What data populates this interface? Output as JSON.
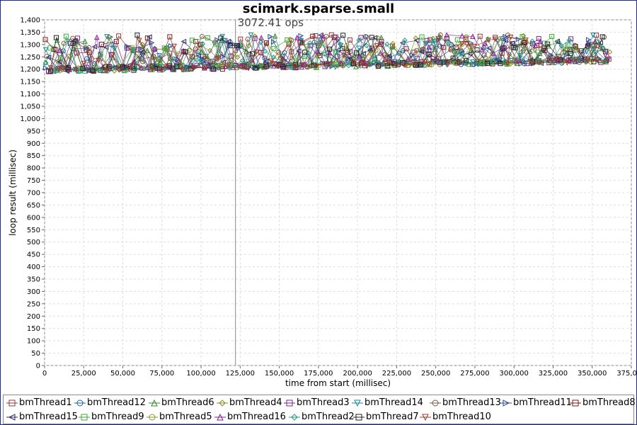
{
  "chart_data": {
    "type": "scatter",
    "title": "scimark.sparse.small",
    "xlabel": "time from start (millisec)",
    "ylabel": "loop result (millisec)",
    "xlim": [
      0,
      375000
    ],
    "ylim": [
      0,
      1400
    ],
    "x_ticks": [
      "0",
      "25,000",
      "50,000",
      "75,000",
      "100,000",
      "125,000",
      "150,000",
      "175,000",
      "200,000",
      "225,000",
      "250,000",
      "275,000",
      "300,000",
      "325,000",
      "350,000",
      "375,000"
    ],
    "y_ticks": [
      "0",
      "50",
      "100",
      "150",
      "200",
      "250",
      "300",
      "350",
      "400",
      "450",
      "500",
      "550",
      "600",
      "650",
      "700",
      "750",
      "800",
      "850",
      "900",
      "950",
      "1,000",
      "1,050",
      "1,100",
      "1,150",
      "1,200",
      "1,250",
      "1,300",
      "1,350",
      "1,400"
    ],
    "grid": true,
    "legend_position": "bottom",
    "marker_line": {
      "x": 122000,
      "label": "3072.41 ops"
    },
    "series": [
      {
        "name": "bmThread1",
        "marker": "square",
        "color": "#8b3a3a"
      },
      {
        "name": "bmThread12",
        "marker": "circle",
        "color": "#1f5fa0"
      },
      {
        "name": "bmThread6",
        "marker": "triangle-up",
        "color": "#2e8b2e"
      },
      {
        "name": "bmThread4",
        "marker": "diamond",
        "color": "#8a8a1a"
      },
      {
        "name": "bmThread3",
        "marker": "square",
        "color": "#7a2a8a"
      },
      {
        "name": "bmThread14",
        "marker": "triangle-down",
        "color": "#1a8a9a"
      },
      {
        "name": "bmThread13",
        "marker": "circle",
        "color": "#7a5a3a"
      },
      {
        "name": "bmThread11",
        "marker": "triangle-right",
        "color": "#2a4a9a"
      },
      {
        "name": "bmThread8",
        "marker": "square",
        "color": "#7a1a1a"
      },
      {
        "name": "bmThread15",
        "marker": "triangle-left",
        "color": "#2a2a6a"
      },
      {
        "name": "bmThread9",
        "marker": "square",
        "color": "#3aaa3a"
      },
      {
        "name": "bmThread5",
        "marker": "circle",
        "color": "#8a9a2a"
      },
      {
        "name": "bmThread16",
        "marker": "triangle-up",
        "color": "#8a1a9a"
      },
      {
        "name": "bmThread2",
        "marker": "diamond",
        "color": "#1a9a8a"
      },
      {
        "name": "bmThread7",
        "marker": "square",
        "color": "#222222"
      },
      {
        "name": "bmThread10",
        "marker": "triangle-down",
        "color": "#9a3a2a"
      }
    ],
    "data_summary": {
      "x_range": [
        0,
        362000
      ],
      "y_baseline_start": 1195,
      "y_baseline_end": 1235,
      "y_spread_min": 1185,
      "y_spread_max": 1340
    }
  }
}
